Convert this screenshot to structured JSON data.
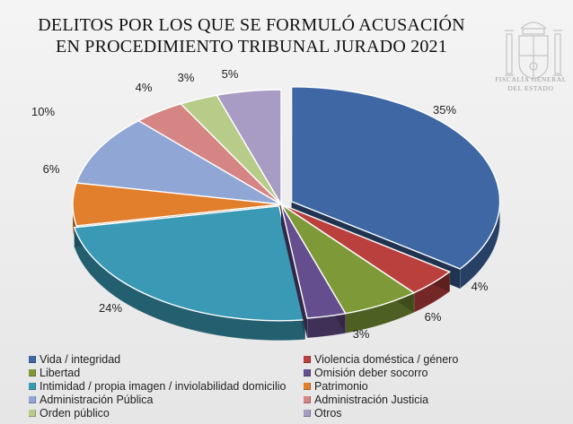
{
  "chart_data": {
    "type": "pie",
    "title": [
      "DELITOS POR LOS QUE SE FORMULÓ ACUSACIÓN",
      "EN PROCEDIMIENTO TRIBUNAL JURADO 2021"
    ],
    "legend_position": "bottom",
    "slices": [
      {
        "label": "Vida / integridad",
        "value": 35,
        "display": "35%",
        "color": "#3f67a4"
      },
      {
        "label": "Violencia doméstica / género",
        "value": 4,
        "display": "4%",
        "color": "#b9403d"
      },
      {
        "label": "Libertad",
        "value": 6,
        "display": "6%",
        "color": "#7e9a38"
      },
      {
        "label": "Omisión deber socorro",
        "value": 3,
        "display": "3%",
        "color": "#654e8e"
      },
      {
        "label": "Intimidad / propia imagen / inviolabilidad domicilio",
        "value": 24,
        "display": "24%",
        "color": "#3a9ab5"
      },
      {
        "label": "Patrimonio",
        "value": 6,
        "display": "6%",
        "color": "#e27f2c"
      },
      {
        "label": "Administración Pública",
        "value": 10,
        "display": "10%",
        "color": "#90a6d4"
      },
      {
        "label": "Administración Justicia",
        "value": 4,
        "display": "4%",
        "color": "#d58583"
      },
      {
        "label": "Orden público",
        "value": 3,
        "display": "3%",
        "color": "#b7cc88"
      },
      {
        "label": "Otros",
        "value": 5,
        "display": "5%",
        "color": "#a89bc4"
      }
    ]
  },
  "seal": {
    "line1": "FISCALÍA GENERAL",
    "line2": "DEL ESTADO"
  }
}
